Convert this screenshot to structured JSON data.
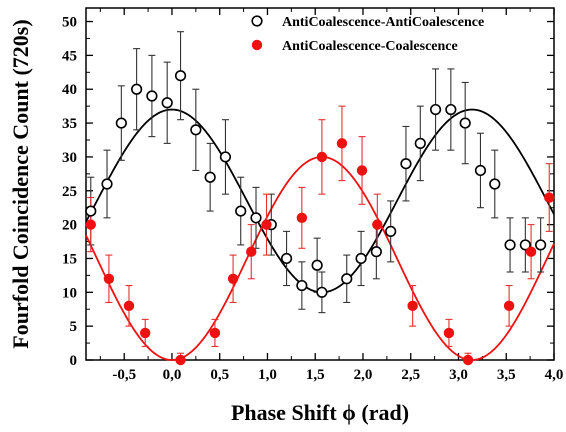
{
  "chart_data": {
    "type": "scatter",
    "xlabel": "Phase Shift ϕ (rad)",
    "ylabel": "Fourfold Coincidence Count (720s)",
    "xlim": [
      -0.9,
      4.0
    ],
    "ylim": [
      0,
      52
    ],
    "xticks": [
      -0.5,
      0.0,
      0.5,
      1.0,
      1.5,
      2.0,
      2.5,
      3.0,
      3.5,
      4.0
    ],
    "xtick_labels": [
      "-0,5",
      "0,0",
      "0,5",
      "1,0",
      "1,5",
      "2,0",
      "2,5",
      "3,0",
      "3,5",
      "4,0"
    ],
    "yticks": [
      0,
      5,
      10,
      15,
      20,
      25,
      30,
      35,
      40,
      45,
      50
    ],
    "ytick_labels": [
      "0",
      "5",
      "10",
      "15",
      "20",
      "25",
      "30",
      "35",
      "40",
      "45",
      "50"
    ],
    "legend_position": "top-right",
    "series": [
      {
        "name": "AntiCoalescence-AntiCoalescence",
        "marker": "open-circle",
        "color": "#000000",
        "x": [
          -0.85,
          -0.68,
          -0.53,
          -0.37,
          -0.21,
          -0.05,
          0.09,
          0.25,
          0.4,
          0.56,
          0.72,
          0.88,
          1.04,
          1.2,
          1.36,
          1.52,
          1.57,
          1.83,
          1.98,
          2.14,
          2.29,
          2.45,
          2.6,
          2.76,
          2.92,
          3.07,
          3.23,
          3.38,
          3.54,
          3.7,
          3.86
        ],
        "y": [
          22,
          26,
          35,
          40,
          39,
          38,
          42,
          34,
          27,
          30,
          22,
          21,
          20,
          15,
          11,
          14,
          10,
          12,
          15,
          16,
          19,
          29,
          32,
          37,
          37,
          35,
          28,
          26,
          17,
          17,
          17
        ],
        "err": [
          5,
          5,
          5.5,
          6,
          6,
          6,
          6.5,
          6,
          5,
          5.5,
          5,
          4.5,
          4.5,
          4,
          3.5,
          4,
          3,
          3.5,
          4,
          4,
          4.5,
          5.5,
          5.5,
          6,
          6,
          6,
          5.5,
          5,
          4,
          4,
          4
        ]
      },
      {
        "name": "AntiCoalescence-Coalescence",
        "marker": "filled-circle",
        "color": "#ee1111",
        "x": [
          -0.85,
          -0.66,
          -0.45,
          -0.28,
          0.09,
          0.45,
          0.64,
          0.83,
          0.99,
          1.36,
          1.57,
          1.78,
          1.99,
          2.15,
          2.52,
          2.9,
          3.1,
          3.53,
          3.76,
          3.95
        ],
        "y": [
          20,
          12,
          8,
          4,
          0,
          4,
          12,
          16,
          20,
          21,
          30,
          32,
          28,
          20,
          8,
          4,
          0,
          8,
          16,
          24
        ],
        "err": [
          4,
          3.5,
          3,
          2,
          1,
          2,
          3.5,
          4,
          4.5,
          4.5,
          5.5,
          5.5,
          5,
          4.5,
          3,
          2,
          1,
          3,
          4,
          5
        ]
      }
    ],
    "fits": [
      {
        "series": "AntiCoalescence-AntiCoalescence",
        "color": "#000000",
        "offset": 23.5,
        "amplitude": 13.5,
        "phase": 0.0
      },
      {
        "series": "AntiCoalescence-Coalescence",
        "color": "#ee1111",
        "offset": 15.0,
        "amplitude": -15.0,
        "phase": 0.0
      }
    ]
  }
}
